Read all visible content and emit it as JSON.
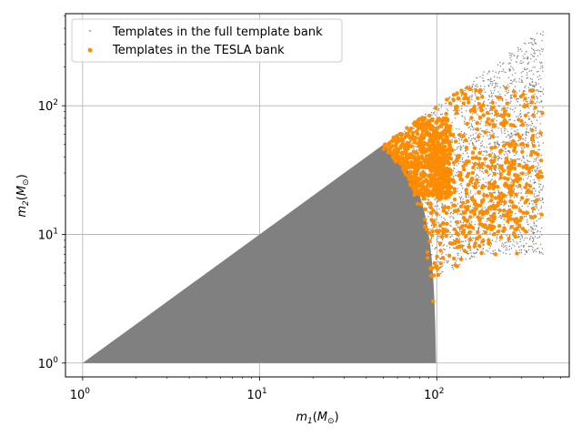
{
  "chart_data": {
    "type": "scatter",
    "title": "",
    "xlabel": {
      "base": "m",
      "sub": "1",
      "unit": "M",
      "unit_sub": "⊙"
    },
    "ylabel": {
      "base": "m",
      "sub": "2",
      "unit": "M",
      "unit_sub": "⊙"
    },
    "x_scale": "log",
    "y_scale": "log",
    "xlim": [
      0.8,
      560
    ],
    "ylim": [
      0.78,
      520
    ],
    "grid": true,
    "legend_position": "top-left",
    "x_ticks": [
      {
        "value": 1,
        "base": "10",
        "exp": "0"
      },
      {
        "value": 10,
        "base": "10",
        "exp": "1"
      },
      {
        "value": 100,
        "base": "10",
        "exp": "2"
      }
    ],
    "y_ticks": [
      {
        "value": 1,
        "base": "10",
        "exp": "0"
      },
      {
        "value": 10,
        "base": "10",
        "exp": "1"
      },
      {
        "value": 100,
        "base": "10",
        "exp": "2"
      }
    ],
    "series": [
      {
        "name": "Templates in the full template bank",
        "color": "#808080",
        "marker": "tiny-dot",
        "region": {
          "m1_min": 1,
          "m1_max": 400,
          "m2_min": 1,
          "mtotal_max": 800,
          "m2_over_m1_max": 1.0,
          "mass_ratio_limit_low_mass": 0.98,
          "low_region_mtotal_max": 100
        }
      },
      {
        "name": "Templates in the TESLA bank",
        "color": "#ff8c00",
        "marker": "dot",
        "approx_count": 1200,
        "clusters": [
          {
            "m1_range": [
              50,
              120
            ],
            "m2_range": [
              20,
              80
            ],
            "density": "high"
          },
          {
            "m1_range": [
              80,
              400
            ],
            "m2_range": [
              10,
              140
            ],
            "density": "medium"
          },
          {
            "m1_range": [
              40,
              300
            ],
            "m2_range": [
              2,
              40
            ],
            "density": "low"
          }
        ]
      }
    ]
  }
}
